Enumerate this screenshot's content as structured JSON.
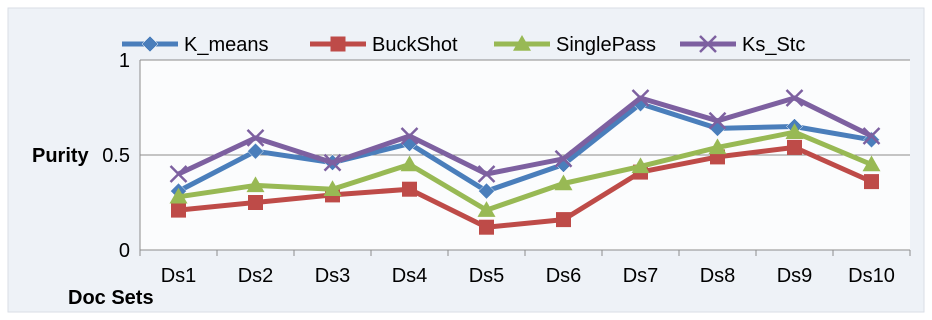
{
  "chart_data": {
    "type": "line",
    "title": "",
    "xlabel": "Doc Sets",
    "ylabel": "Purity",
    "categories": [
      "Ds1",
      "Ds2",
      "Ds3",
      "Ds4",
      "Ds5",
      "Ds6",
      "Ds7",
      "Ds8",
      "Ds9",
      "Ds10"
    ],
    "ylim": [
      0,
      1
    ],
    "yticks": [
      {
        "value": 0,
        "label": "0"
      },
      {
        "value": 0.5,
        "label": "0.5"
      },
      {
        "value": 1,
        "label": "1"
      }
    ],
    "grid": true,
    "legend_position": "top",
    "series": [
      {
        "name": "K_means",
        "color": "#4a7ebb",
        "marker": "diamond",
        "values": [
          0.31,
          0.52,
          0.46,
          0.56,
          0.31,
          0.45,
          0.77,
          0.64,
          0.65,
          0.58
        ]
      },
      {
        "name": "BuckShot",
        "color": "#be4b48",
        "marker": "square",
        "values": [
          0.21,
          0.25,
          0.29,
          0.32,
          0.12,
          0.16,
          0.41,
          0.49,
          0.54,
          0.36
        ]
      },
      {
        "name": "SinglePass",
        "color": "#98b954",
        "marker": "triangle",
        "values": [
          0.28,
          0.34,
          0.32,
          0.45,
          0.21,
          0.35,
          0.44,
          0.54,
          0.62,
          0.45
        ]
      },
      {
        "name": "Ks_Stc",
        "color": "#7d60a0",
        "marker": "x",
        "values": [
          0.4,
          0.59,
          0.46,
          0.6,
          0.4,
          0.48,
          0.8,
          0.68,
          0.8,
          0.6
        ]
      }
    ]
  }
}
